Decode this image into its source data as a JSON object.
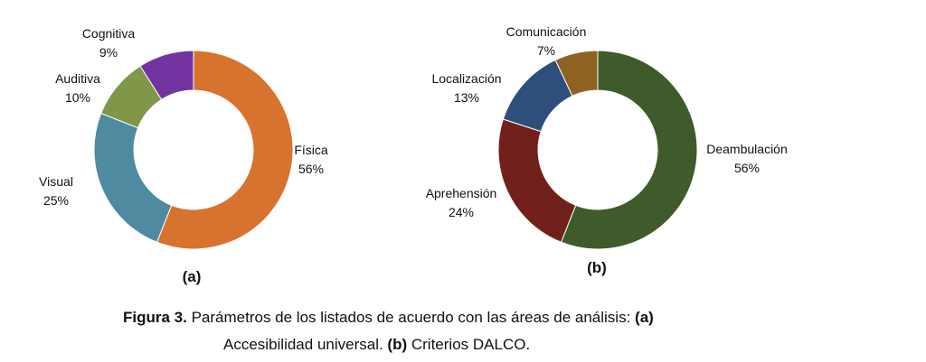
{
  "chart_data": [
    {
      "type": "pie",
      "style": "donut",
      "panel_label": "(a)",
      "slices": [
        {
          "label": "Física",
          "value": 56,
          "value_label": "56%",
          "color": "#D8722F"
        },
        {
          "label": "Visual",
          "value": 25,
          "value_label": "25%",
          "color": "#4E8AA0"
        },
        {
          "label": "Auditiva",
          "value": 10,
          "value_label": "10%",
          "color": "#80974A"
        },
        {
          "label": "Cognitiva",
          "value": 9,
          "value_label": "9%",
          "color": "#7134A1"
        }
      ]
    },
    {
      "type": "pie",
      "style": "donut",
      "panel_label": "(b)",
      "slices": [
        {
          "label": "Deambulación",
          "value": 56,
          "value_label": "56%",
          "color": "#3F5A2B"
        },
        {
          "label": "Aprehensión",
          "value": 24,
          "value_label": "24%",
          "color": "#71201B"
        },
        {
          "label": "Localización",
          "value": 13,
          "value_label": "13%",
          "color": "#2E4F7B"
        },
        {
          "label": "Comunicación",
          "value": 7,
          "value_label": "7%",
          "color": "#8E6321"
        }
      ]
    }
  ],
  "caption": {
    "figure_label": "Figura 3.",
    "line1_text": " Parámetros de los listados de acuerdo con las áreas de análisis: ",
    "line1_tag": "(a)",
    "line2_text_a": "Accesibilidad  universal. ",
    "line2_tag": "(b)",
    "line2_text_b": " Criterios DALCO."
  }
}
